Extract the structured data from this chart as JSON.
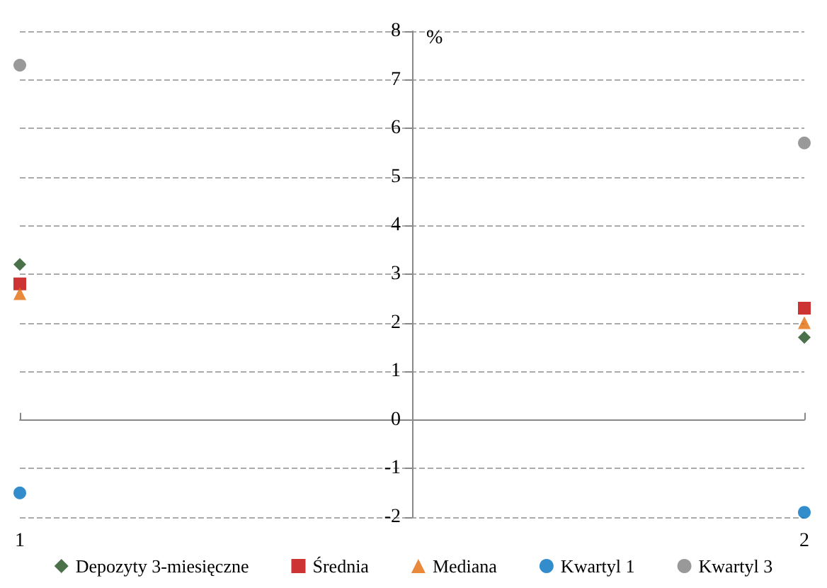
{
  "chart_data": {
    "type": "scatter",
    "ylabel": "%",
    "x": [
      1,
      2
    ],
    "xlim": [
      1,
      2
    ],
    "xticks": [
      1,
      2
    ],
    "ylim": [
      -2,
      8
    ],
    "yticks": [
      -2,
      -1,
      0,
      1,
      2,
      3,
      4,
      5,
      6,
      7,
      8
    ],
    "grid": "y",
    "legend": "bottom",
    "series": [
      {
        "name": "Depozyty 3-miesięczne",
        "color": "#1e4d1e",
        "marker": "diamond",
        "values": [
          3.2,
          1.7
        ]
      },
      {
        "name": "Średnia",
        "color": "#c00000",
        "marker": "square",
        "values": [
          2.8,
          2.3
        ]
      },
      {
        "name": "Mediana",
        "color": "#e46c0a",
        "marker": "triangle",
        "values": [
          2.6,
          2.0
        ]
      },
      {
        "name": "Kwartyl 1",
        "color": "#0070c0",
        "marker": "circle",
        "values": [
          -1.5,
          -1.9
        ]
      },
      {
        "name": "Kwartyl 3",
        "color": "#808080",
        "marker": "circle",
        "values": [
          7.3,
          5.7
        ]
      }
    ]
  }
}
